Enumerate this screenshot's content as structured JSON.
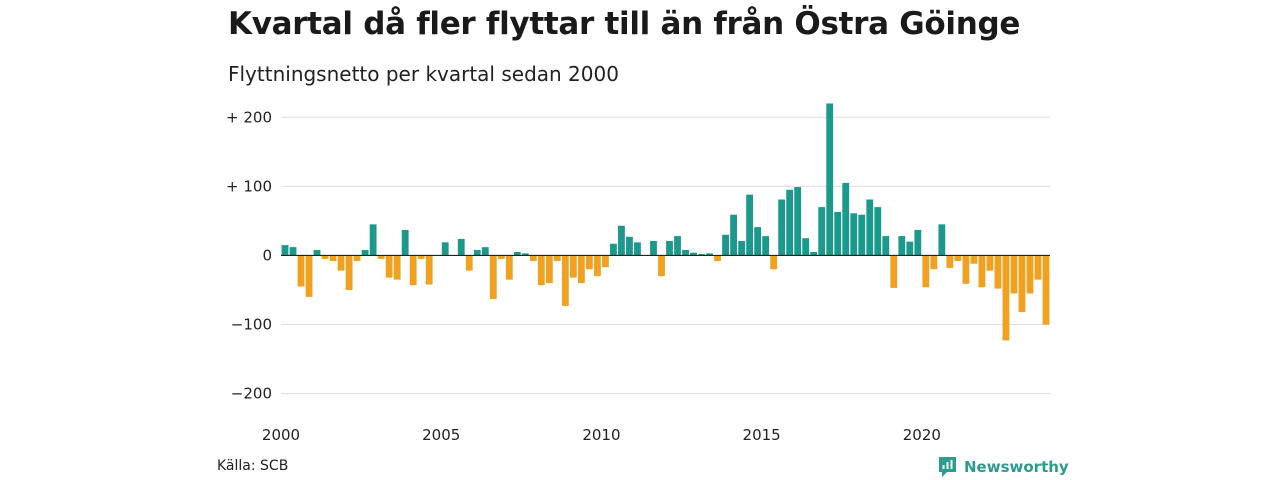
{
  "title": "Kvartal då fler flyttar till än från Östra Göinge",
  "subtitle": "Flyttningsnetto per kvartal sedan 2000",
  "source": "Källa: SCB",
  "brand": {
    "name": "Newsworthy",
    "icon": "newsworthy-logo-icon"
  },
  "colors": {
    "positive": "#1a9a8c",
    "negative": "#f2a11f",
    "grid": "#dddddd",
    "axis": "#222222"
  },
  "chart_data": {
    "type": "bar",
    "x_start": "2000 Q1",
    "x_ticks": [
      {
        "value": 2000,
        "label": "2000"
      },
      {
        "value": 2005,
        "label": "2005"
      },
      {
        "value": 2010,
        "label": "2010"
      },
      {
        "value": 2015,
        "label": "2015"
      },
      {
        "value": 2020,
        "label": "2020"
      }
    ],
    "y_ticks": [
      {
        "value": 200,
        "label": "+ 200"
      },
      {
        "value": 100,
        "label": "+ 100"
      },
      {
        "value": 0,
        "label": "0"
      },
      {
        "value": -100,
        "label": "−100"
      },
      {
        "value": -200,
        "label": "−200"
      }
    ],
    "ylim": [
      -215,
      225
    ],
    "grid": true,
    "values": [
      15,
      12,
      -45,
      -60,
      8,
      -5,
      -8,
      -22,
      -50,
      -8,
      8,
      45,
      -5,
      -32,
      -35,
      37,
      -43,
      -5,
      -42,
      0,
      19,
      0,
      24,
      -22,
      8,
      12,
      -63,
      -5,
      -35,
      5,
      3,
      -8,
      -43,
      -40,
      -8,
      -73,
      -32,
      -40,
      -20,
      -30,
      -17,
      17,
      43,
      27,
      19,
      0,
      21,
      -30,
      21,
      28,
      8,
      4,
      2,
      3,
      -8,
      30,
      59,
      21,
      88,
      41,
      28,
      -20,
      81,
      95,
      99,
      25,
      5,
      70,
      220,
      63,
      105,
      61,
      59,
      81,
      70,
      28,
      -47,
      28,
      20,
      37,
      -46,
      -20,
      45,
      -18,
      -8,
      -41,
      -12,
      -46,
      -22,
      -48,
      -123,
      -55,
      -82,
      -55,
      -35,
      -100
    ]
  }
}
